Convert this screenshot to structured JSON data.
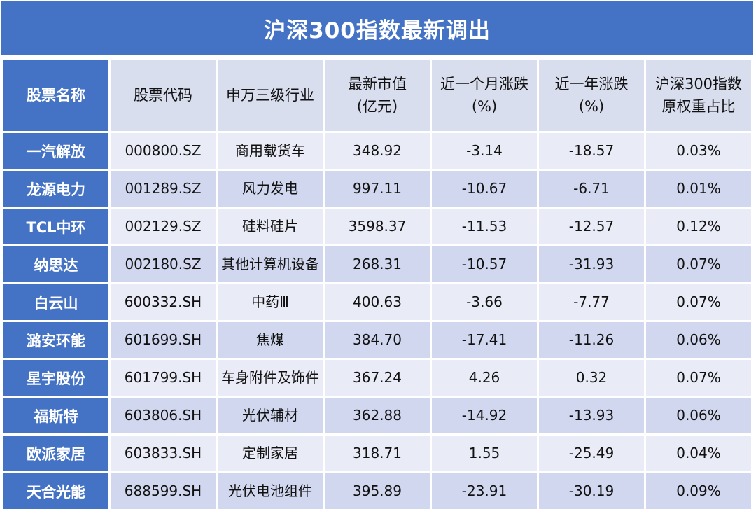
{
  "title": "沪深300指数最新调出",
  "headers": [
    "股票名称",
    "股票代码",
    "申万三级行业",
    "最新市值\n(亿元)",
    "近一个月涨跌\n(%)",
    "近一年涨跌\n(%)",
    "沪深300指数\n原权重占比"
  ],
  "rows": [
    [
      "一汽解放",
      "000800.SZ",
      "商用载货车",
      "348.92",
      "-3.14",
      "-18.57",
      "0.03%"
    ],
    [
      "龙源电力",
      "001289.SZ",
      "风力发电",
      "997.11",
      "-10.67",
      "-6.71",
      "0.01%"
    ],
    [
      "TCL中环",
      "002129.SZ",
      "硅料硅片",
      "3598.37",
      "-11.53",
      "-12.57",
      "0.12%"
    ],
    [
      "纳思达",
      "002180.SZ",
      "其他计算机设备",
      "268.31",
      "-10.57",
      "-31.93",
      "0.07%"
    ],
    [
      "白云山",
      "600332.SH",
      "中药Ⅲ",
      "400.63",
      "-3.66",
      "-7.77",
      "0.07%"
    ],
    [
      "潞安环能",
      "601699.SH",
      "焦煤",
      "384.70",
      "-17.41",
      "-11.26",
      "0.06%"
    ],
    [
      "星宇股份",
      "601799.SH",
      "车身附件及饰件",
      "367.24",
      "4.26",
      "0.32",
      "0.07%"
    ],
    [
      "福斯特",
      "603806.SH",
      "光伏辅材",
      "362.88",
      "-14.92",
      "-13.93",
      "0.06%"
    ],
    [
      "欧派家居",
      "603833.SH",
      "定制家居",
      "318.71",
      "1.55",
      "-25.49",
      "0.04%"
    ],
    [
      "天合光能",
      "688599.SH",
      "光伏电池组件",
      "395.89",
      "-23.91",
      "-30.19",
      "0.09%"
    ]
  ]
}
